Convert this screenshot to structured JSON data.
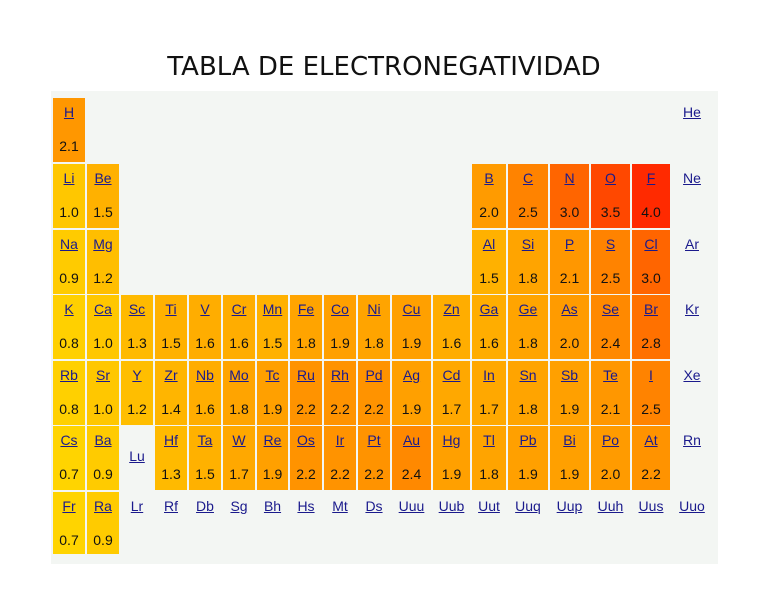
{
  "title": "TABLA DE ELECTRONEGATIVIDAD",
  "elements": [
    {
      "s": "H",
      "v": "2.1",
      "r": 0,
      "c": 0
    },
    {
      "s": "He",
      "v": "",
      "r": 0,
      "c": 18
    },
    {
      "s": "Li",
      "v": "1.0",
      "r": 1,
      "c": 0
    },
    {
      "s": "Be",
      "v": "1.5",
      "r": 1,
      "c": 1
    },
    {
      "s": "B",
      "v": "2.0",
      "r": 1,
      "c": 12
    },
    {
      "s": "C",
      "v": "2.5",
      "r": 1,
      "c": 13
    },
    {
      "s": "N",
      "v": "3.0",
      "r": 1,
      "c": 14
    },
    {
      "s": "O",
      "v": "3.5",
      "r": 1,
      "c": 15
    },
    {
      "s": "F",
      "v": "4.0",
      "r": 1,
      "c": 16
    },
    {
      "s": "Ne",
      "v": "",
      "r": 1,
      "c": 18
    },
    {
      "s": "Na",
      "v": "0.9",
      "r": 2,
      "c": 0
    },
    {
      "s": "Mg",
      "v": "1.2",
      "r": 2,
      "c": 1
    },
    {
      "s": "Al",
      "v": "1.5",
      "r": 2,
      "c": 12
    },
    {
      "s": "Si",
      "v": "1.8",
      "r": 2,
      "c": 13
    },
    {
      "s": "P",
      "v": "2.1",
      "r": 2,
      "c": 14
    },
    {
      "s": "S",
      "v": "2.5",
      "r": 2,
      "c": 15
    },
    {
      "s": "Cl",
      "v": "3.0",
      "r": 2,
      "c": 16
    },
    {
      "s": "Ar",
      "v": "",
      "r": 2,
      "c": 18
    },
    {
      "s": "K",
      "v": "0.8",
      "r": 3,
      "c": 0
    },
    {
      "s": "Ca",
      "v": "1.0",
      "r": 3,
      "c": 1
    },
    {
      "s": "Sc",
      "v": "1.3",
      "r": 3,
      "c": 2
    },
    {
      "s": "Ti",
      "v": "1.5",
      "r": 3,
      "c": 3
    },
    {
      "s": "V",
      "v": "1.6",
      "r": 3,
      "c": 4
    },
    {
      "s": "Cr",
      "v": "1.6",
      "r": 3,
      "c": 5
    },
    {
      "s": "Mn",
      "v": "1.5",
      "r": 3,
      "c": 6
    },
    {
      "s": "Fe",
      "v": "1.8",
      "r": 3,
      "c": 7
    },
    {
      "s": "Co",
      "v": "1.9",
      "r": 3,
      "c": 8
    },
    {
      "s": "Ni",
      "v": "1.8",
      "r": 3,
      "c": 9
    },
    {
      "s": "Cu",
      "v": "1.9",
      "r": 3,
      "c": 10
    },
    {
      "s": "Zn",
      "v": "1.6",
      "r": 3,
      "c": 11
    },
    {
      "s": "Ga",
      "v": "1.6",
      "r": 3,
      "c": 12
    },
    {
      "s": "Ge",
      "v": "1.8",
      "r": 3,
      "c": 13
    },
    {
      "s": "As",
      "v": "2.0",
      "r": 3,
      "c": 14
    },
    {
      "s": "Se",
      "v": "2.4",
      "r": 3,
      "c": 15
    },
    {
      "s": "Br",
      "v": "2.8",
      "r": 3,
      "c": 16
    },
    {
      "s": "Kr",
      "v": "",
      "r": 3,
      "c": 18
    },
    {
      "s": "Rb",
      "v": "0.8",
      "r": 4,
      "c": 0
    },
    {
      "s": "Sr",
      "v": "1.0",
      "r": 4,
      "c": 1
    },
    {
      "s": "Y",
      "v": "1.2",
      "r": 4,
      "c": 2
    },
    {
      "s": "Zr",
      "v": "1.4",
      "r": 4,
      "c": 3
    },
    {
      "s": "Nb",
      "v": "1.6",
      "r": 4,
      "c": 4
    },
    {
      "s": "Mo",
      "v": "1.8",
      "r": 4,
      "c": 5
    },
    {
      "s": "Tc",
      "v": "1.9",
      "r": 4,
      "c": 6
    },
    {
      "s": "Ru",
      "v": "2.2",
      "r": 4,
      "c": 7
    },
    {
      "s": "Rh",
      "v": "2.2",
      "r": 4,
      "c": 8
    },
    {
      "s": "Pd",
      "v": "2.2",
      "r": 4,
      "c": 9
    },
    {
      "s": "Ag",
      "v": "1.9",
      "r": 4,
      "c": 10
    },
    {
      "s": "Cd",
      "v": "1.7",
      "r": 4,
      "c": 11
    },
    {
      "s": "In",
      "v": "1.7",
      "r": 4,
      "c": 12
    },
    {
      "s": "Sn",
      "v": "1.8",
      "r": 4,
      "c": 13
    },
    {
      "s": "Sb",
      "v": "1.9",
      "r": 4,
      "c": 14
    },
    {
      "s": "Te",
      "v": "2.1",
      "r": 4,
      "c": 15
    },
    {
      "s": "I",
      "v": "2.5",
      "r": 4,
      "c": 16
    },
    {
      "s": "Xe",
      "v": "",
      "r": 4,
      "c": 18
    },
    {
      "s": "Cs",
      "v": "0.7",
      "r": 5,
      "c": 0
    },
    {
      "s": "Ba",
      "v": "0.9",
      "r": 5,
      "c": 1
    },
    {
      "s": "Lu",
      "v": "",
      "r": 5,
      "c": 2,
      "mid": true
    },
    {
      "s": "Hf",
      "v": "1.3",
      "r": 5,
      "c": 3
    },
    {
      "s": "Ta",
      "v": "1.5",
      "r": 5,
      "c": 4
    },
    {
      "s": "W",
      "v": "1.7",
      "r": 5,
      "c": 5
    },
    {
      "s": "Re",
      "v": "1.9",
      "r": 5,
      "c": 6
    },
    {
      "s": "Os",
      "v": "2.2",
      "r": 5,
      "c": 7
    },
    {
      "s": "Ir",
      "v": "2.2",
      "r": 5,
      "c": 8
    },
    {
      "s": "Pt",
      "v": "2.2",
      "r": 5,
      "c": 9
    },
    {
      "s": "Au",
      "v": "2.4",
      "r": 5,
      "c": 10
    },
    {
      "s": "Hg",
      "v": "1.9",
      "r": 5,
      "c": 11
    },
    {
      "s": "Tl",
      "v": "1.8",
      "r": 5,
      "c": 12
    },
    {
      "s": "Pb",
      "v": "1.9",
      "r": 5,
      "c": 13
    },
    {
      "s": "Bi",
      "v": "1.9",
      "r": 5,
      "c": 14
    },
    {
      "s": "Po",
      "v": "2.0",
      "r": 5,
      "c": 15
    },
    {
      "s": "At",
      "v": "2.2",
      "r": 5,
      "c": 16
    },
    {
      "s": "Rn",
      "v": "",
      "r": 5,
      "c": 18
    },
    {
      "s": "Fr",
      "v": "0.7",
      "r": 6,
      "c": 0
    },
    {
      "s": "Ra",
      "v": "0.9",
      "r": 6,
      "c": 1
    },
    {
      "s": "Lr",
      "v": "",
      "r": 6,
      "c": 2
    },
    {
      "s": "Rf",
      "v": "",
      "r": 6,
      "c": 3
    },
    {
      "s": "Db",
      "v": "",
      "r": 6,
      "c": 4
    },
    {
      "s": "Sg",
      "v": "",
      "r": 6,
      "c": 5
    },
    {
      "s": "Bh",
      "v": "",
      "r": 6,
      "c": 6
    },
    {
      "s": "Hs",
      "v": "",
      "r": 6,
      "c": 7
    },
    {
      "s": "Mt",
      "v": "",
      "r": 6,
      "c": 8
    },
    {
      "s": "Ds",
      "v": "",
      "r": 6,
      "c": 9
    },
    {
      "s": "Uuu",
      "v": "",
      "r": 6,
      "c": 10
    },
    {
      "s": "Uub",
      "v": "",
      "r": 6,
      "c": 11
    },
    {
      "s": "Uut",
      "v": "",
      "r": 6,
      "c": 12
    },
    {
      "s": "Uuq",
      "v": "",
      "r": 6,
      "c": 13
    },
    {
      "s": "Uup",
      "v": "",
      "r": 6,
      "c": 14
    },
    {
      "s": "Uuh",
      "v": "",
      "r": 6,
      "c": 15
    },
    {
      "s": "Uus",
      "v": "",
      "r": 6,
      "c": 16
    },
    {
      "s": "Uuo",
      "v": "",
      "r": 6,
      "c": 18
    }
  ],
  "color_scale": {
    "min": 0.7,
    "max": 4.0,
    "low": "#ffd400",
    "mid": "#ff8c00",
    "high": "#ff2a00"
  }
}
